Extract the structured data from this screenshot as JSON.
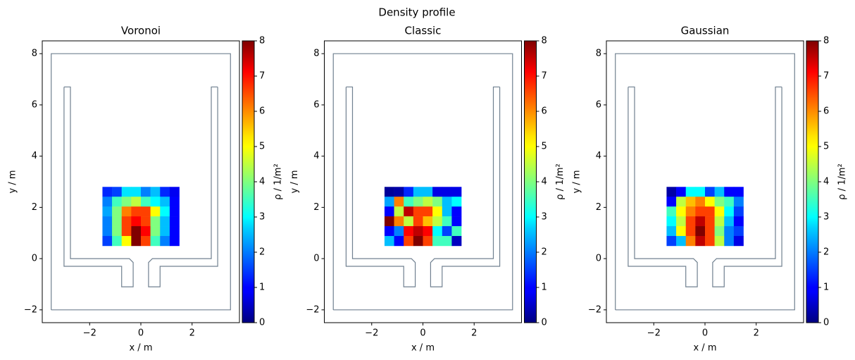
{
  "title": "Density profile",
  "chart_data": [
    {
      "type": "heatmap",
      "title": "Voronoi",
      "xlabel": "x / m",
      "ylabel": "y / m",
      "xlim": [
        -3.85,
        3.85
      ],
      "ylim": [
        -2.5,
        8.5
      ],
      "xticks": [
        {
          "value": -2,
          "label": "−2"
        },
        0,
        2
      ],
      "yticks": [
        {
          "value": -2,
          "label": "−2"
        },
        0,
        2,
        4,
        6,
        8
      ],
      "x_edges": [
        -1.5,
        -1.125,
        -0.75,
        -0.375,
        0,
        0.375,
        0.75,
        1.125,
        1.5
      ],
      "y_edges": [
        2.8,
        2.417,
        2.033,
        1.65,
        1.267,
        0.883,
        0.5
      ],
      "z": [
        [
          1.3,
          1.5,
          2.8,
          2.8,
          2.0,
          2.5,
          1.3,
          0.9
        ],
        [
          2.0,
          3.5,
          4.0,
          4.5,
          3.5,
          3.0,
          2.5,
          1.0
        ],
        [
          2.3,
          4.0,
          6.0,
          6.5,
          6.5,
          5.0,
          3.0,
          1.0
        ],
        [
          2.0,
          4.0,
          6.5,
          7.0,
          6.5,
          4.0,
          2.5,
          1.0
        ],
        [
          2.0,
          4.0,
          6.5,
          8.0,
          7.0,
          4.0,
          2.5,
          1.0
        ],
        [
          1.5,
          3.5,
          5.0,
          8.0,
          6.5,
          3.5,
          2.0,
          1.0
        ]
      ],
      "cmap": "jet",
      "clim": [
        0,
        8
      ],
      "cticks": [
        0,
        1,
        2,
        3,
        4,
        5,
        6,
        7,
        8
      ],
      "clabel": "ρ / 1/m²",
      "geometry_color": "#708090",
      "geometry": [
        {
          "x": [
            -3.5,
            3.5,
            3.5,
            -3.5,
            -3.5
          ],
          "y": [
            -2,
            -2,
            8,
            8,
            -2
          ]
        },
        {
          "x": [
            -3,
            -2.75,
            -2.75,
            -0.45,
            -0.3,
            -0.3,
            -0.75,
            -0.75,
            -3,
            -3
          ],
          "y": [
            6.7,
            6.7,
            0,
            0,
            -0.15,
            -1.1,
            -1.1,
            -0.3,
            -0.3,
            6.7
          ]
        },
        {
          "x": [
            3,
            2.75,
            2.75,
            0.45,
            0.3,
            0.3,
            0.75,
            0.75,
            3,
            3
          ],
          "y": [
            6.7,
            6.7,
            0,
            0,
            -0.15,
            -1.1,
            -1.1,
            -0.3,
            -0.3,
            6.7
          ]
        }
      ]
    },
    {
      "type": "heatmap",
      "title": "Classic",
      "xlabel": "x / m",
      "ylabel": "y / m",
      "xlim": [
        -3.85,
        3.85
      ],
      "ylim": [
        -2.5,
        8.5
      ],
      "xticks": [
        {
          "value": -2,
          "label": "−2"
        },
        0,
        2
      ],
      "yticks": [
        {
          "value": -2,
          "label": "−2"
        },
        0,
        2,
        4,
        6,
        8
      ],
      "x_edges": [
        -1.5,
        -1.125,
        -0.75,
        -0.375,
        0,
        0.375,
        0.75,
        1.125,
        1.5
      ],
      "y_edges": [
        2.8,
        2.417,
        2.033,
        1.65,
        1.267,
        0.883,
        0.5
      ],
      "z": [
        [
          0.2,
          0.3,
          1.3,
          2.5,
          2.5,
          0.8,
          0.8,
          0.8
        ],
        [
          2.3,
          6.0,
          3.5,
          4.0,
          4.5,
          4.0,
          2.5,
          3.0
        ],
        [
          1.0,
          4.5,
          7.5,
          6.5,
          6.5,
          5.0,
          2.5,
          1.0
        ],
        [
          8.0,
          6.0,
          4.5,
          6.5,
          5.5,
          4.5,
          3.5,
          1.0
        ],
        [
          1.0,
          2.0,
          7.0,
          7.5,
          7.0,
          3.0,
          1.5,
          3.5
        ],
        [
          2.5,
          1.0,
          6.5,
          8.0,
          6.5,
          3.5,
          3.5,
          0.5
        ]
      ],
      "cmap": "jet",
      "clim": [
        0,
        8
      ],
      "cticks": [
        0,
        1,
        2,
        3,
        4,
        5,
        6,
        7,
        8
      ],
      "clabel": "ρ / 1/m²",
      "geometry_color": "#708090",
      "geometry": [
        {
          "x": [
            -3.5,
            3.5,
            3.5,
            -3.5,
            -3.5
          ],
          "y": [
            -2,
            -2,
            8,
            8,
            -2
          ]
        },
        {
          "x": [
            -3,
            -2.75,
            -2.75,
            -0.45,
            -0.3,
            -0.3,
            -0.75,
            -0.75,
            -3,
            -3
          ],
          "y": [
            6.7,
            6.7,
            0,
            0,
            -0.15,
            -1.1,
            -1.1,
            -0.3,
            -0.3,
            6.7
          ]
        },
        {
          "x": [
            3,
            2.75,
            2.75,
            0.45,
            0.3,
            0.3,
            0.75,
            0.75,
            3,
            3
          ],
          "y": [
            6.7,
            6.7,
            0,
            0,
            -0.15,
            -1.1,
            -1.1,
            -0.3,
            -0.3,
            6.7
          ]
        }
      ]
    },
    {
      "type": "heatmap",
      "title": "Gaussian",
      "xlabel": "x / m",
      "ylabel": "y / m",
      "xlim": [
        -3.85,
        3.85
      ],
      "ylim": [
        -2.5,
        8.5
      ],
      "xticks": [
        {
          "value": -2,
          "label": "−2"
        },
        0,
        2
      ],
      "yticks": [
        {
          "value": -2,
          "label": "−2"
        },
        0,
        2,
        4,
        6,
        8
      ],
      "x_edges": [
        -1.5,
        -1.125,
        -0.75,
        -0.375,
        0,
        0.375,
        0.75,
        1.125,
        1.5
      ],
      "y_edges": [
        2.8,
        2.417,
        2.033,
        1.65,
        1.267,
        0.883,
        0.5
      ],
      "z": [
        [
          0.3,
          1.0,
          3.0,
          3.0,
          1.5,
          2.5,
          1.0,
          1.0
        ],
        [
          1.0,
          4.5,
          5.5,
          6.0,
          5.0,
          4.0,
          3.5,
          2.0
        ],
        [
          3.5,
          5.0,
          6.0,
          6.5,
          6.5,
          5.0,
          3.0,
          1.5
        ],
        [
          3.0,
          4.5,
          6.5,
          7.5,
          6.5,
          4.5,
          2.5,
          1.0
        ],
        [
          2.5,
          5.0,
          6.5,
          8.0,
          6.5,
          4.0,
          2.0,
          1.5
        ],
        [
          1.5,
          2.5,
          6.0,
          7.5,
          6.5,
          4.5,
          2.0,
          0.8
        ]
      ],
      "cmap": "jet",
      "clim": [
        0,
        8
      ],
      "cticks": [
        0,
        1,
        2,
        3,
        4,
        5,
        6,
        7,
        8
      ],
      "clabel": "ρ / 1/m²",
      "geometry_color": "#708090",
      "geometry": [
        {
          "x": [
            -3.5,
            3.5,
            3.5,
            -3.5,
            -3.5
          ],
          "y": [
            -2,
            -2,
            8,
            8,
            -2
          ]
        },
        {
          "x": [
            -3,
            -2.75,
            -2.75,
            -0.45,
            -0.3,
            -0.3,
            -0.75,
            -0.75,
            -3,
            -3
          ],
          "y": [
            6.7,
            6.7,
            0,
            0,
            -0.15,
            -1.1,
            -1.1,
            -0.3,
            -0.3,
            6.7
          ]
        },
        {
          "x": [
            3,
            2.75,
            2.75,
            0.45,
            0.3,
            0.3,
            0.75,
            0.75,
            3,
            3
          ],
          "y": [
            6.7,
            6.7,
            0,
            0,
            -0.15,
            -1.1,
            -1.1,
            -0.3,
            -0.3,
            6.7
          ]
        }
      ]
    }
  ]
}
